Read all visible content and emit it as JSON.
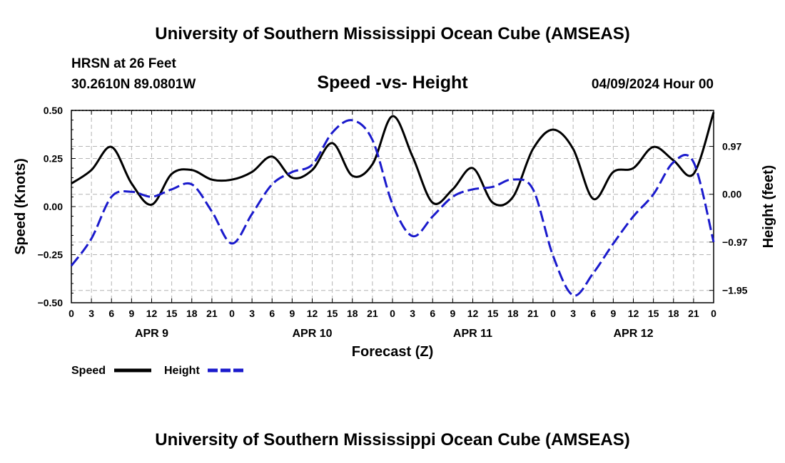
{
  "header": {
    "title": "University of Southern Mississippi Ocean Cube (AMSEAS)",
    "station": "HRSN at 26 Feet",
    "coords": "30.2610N  89.0801W",
    "subtitle": "Speed -vs- Height",
    "datetime": "04/09/2024 Hour 00"
  },
  "footer": {
    "title": "University of Southern Mississippi Ocean Cube (AMSEAS)"
  },
  "chart_data": {
    "type": "line",
    "title": "Speed -vs- Height",
    "xlabel": "Forecast (Z)",
    "ylabel": "Speed (Knots)",
    "y2label": "Height (feet)",
    "xlim": [
      0,
      96
    ],
    "ylim": [
      -0.5,
      0.5
    ],
    "y2lim": [
      -2.2,
      1.7
    ],
    "grid": true,
    "x_ticks": [
      0,
      3,
      6,
      9,
      12,
      15,
      18,
      21,
      24,
      27,
      30,
      33,
      36,
      39,
      42,
      45,
      48,
      51,
      54,
      57,
      60,
      63,
      66,
      69,
      72,
      75,
      78,
      81,
      84,
      87,
      90,
      93,
      96
    ],
    "x_tick_labels": [
      "0",
      "3",
      "6",
      "9",
      "12",
      "15",
      "18",
      "21",
      "0",
      "3",
      "6",
      "9",
      "12",
      "15",
      "18",
      "21",
      "0",
      "3",
      "6",
      "9",
      "12",
      "15",
      "18",
      "21",
      "0",
      "3",
      "6",
      "9",
      "12",
      "15",
      "18",
      "21",
      "0"
    ],
    "day_labels": [
      {
        "label": "APR 9",
        "hour": 12
      },
      {
        "label": "APR 10",
        "hour": 36
      },
      {
        "label": "APR 11",
        "hour": 60
      },
      {
        "label": "APR 12",
        "hour": 84
      }
    ],
    "y_ticks": [
      0.5,
      0.25,
      0.0,
      -0.25,
      -0.5
    ],
    "y_tick_labels": [
      "0.50",
      "0.25",
      "0.00",
      "−0.25",
      "−0.50"
    ],
    "y2_ticks": [
      0.97,
      0.0,
      -0.97,
      -1.95
    ],
    "y2_tick_labels": [
      "0.97",
      "0.00",
      "−0.97",
      "−1.95"
    ],
    "legend": [
      {
        "name": "Speed",
        "color": "#000000",
        "dash": "solid"
      },
      {
        "name": "Height",
        "color": "#1a1acc",
        "dash": "dashed"
      }
    ],
    "series": [
      {
        "name": "Speed",
        "axis": "left",
        "color": "#000000",
        "x": [
          0,
          3,
          6,
          9,
          12,
          15,
          18,
          21,
          24,
          27,
          30,
          33,
          36,
          39,
          42,
          45,
          48,
          51,
          54,
          57,
          60,
          63,
          66,
          69,
          72,
          75,
          78,
          81,
          84,
          87,
          90,
          93,
          96
        ],
        "values": [
          0.12,
          0.19,
          0.31,
          0.12,
          0.01,
          0.17,
          0.19,
          0.14,
          0.14,
          0.18,
          0.26,
          0.15,
          0.19,
          0.33,
          0.16,
          0.22,
          0.47,
          0.26,
          0.02,
          0.09,
          0.2,
          0.02,
          0.05,
          0.3,
          0.4,
          0.3,
          0.04,
          0.18,
          0.2,
          0.31,
          0.24,
          0.17,
          0.49
        ]
      },
      {
        "name": "Height",
        "axis": "right",
        "color": "#1a1acc",
        "x": [
          0,
          3,
          6,
          9,
          12,
          15,
          18,
          21,
          24,
          27,
          30,
          33,
          36,
          39,
          42,
          45,
          48,
          51,
          54,
          57,
          60,
          63,
          66,
          69,
          72,
          75,
          78,
          81,
          84,
          87,
          90,
          93,
          96
        ],
        "values": [
          -1.45,
          -0.9,
          -0.05,
          0.05,
          -0.05,
          0.1,
          0.2,
          -0.35,
          -1.0,
          -0.4,
          0.2,
          0.45,
          0.6,
          1.25,
          1.5,
          1.1,
          -0.2,
          -0.85,
          -0.45,
          -0.05,
          0.1,
          0.15,
          0.3,
          0.1,
          -1.25,
          -2.05,
          -1.6,
          -1.0,
          -0.45,
          0.0,
          0.65,
          0.65,
          -0.97
        ]
      }
    ]
  }
}
